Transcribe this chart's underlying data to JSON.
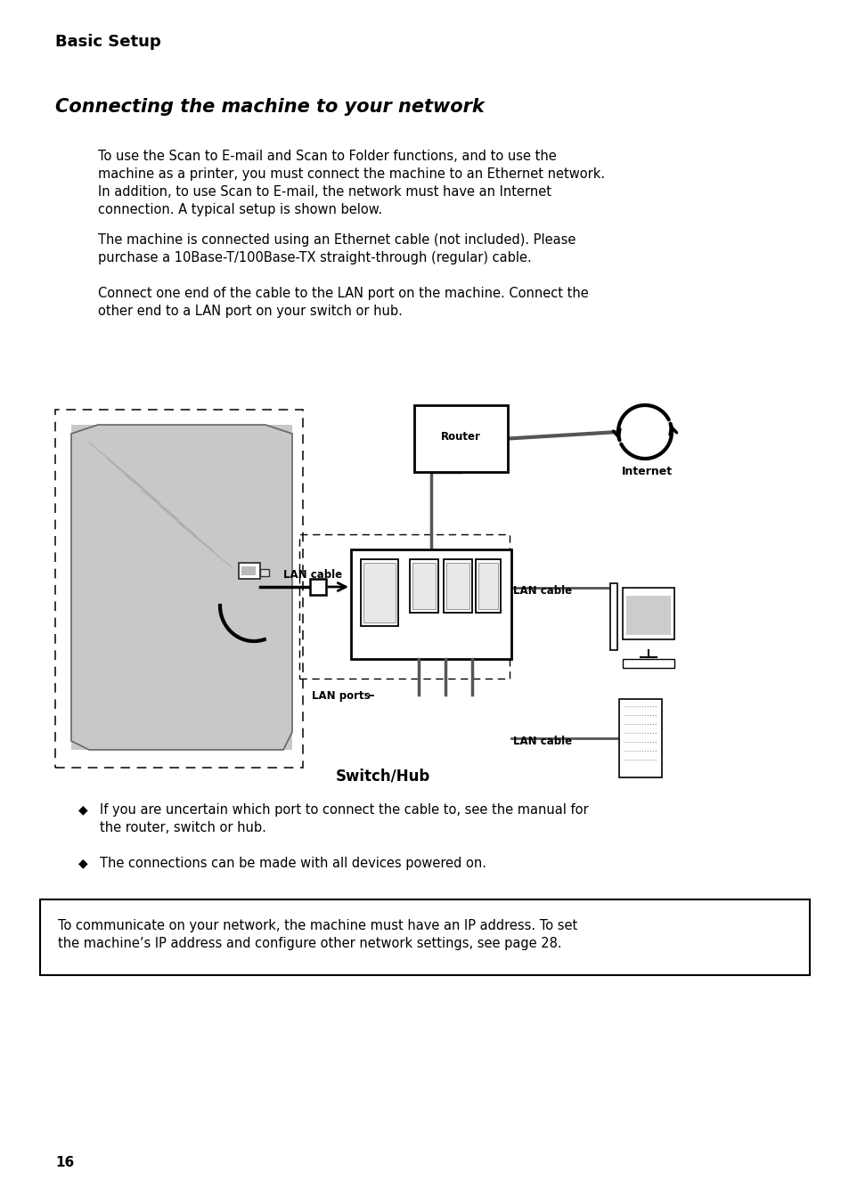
{
  "title": "Basic Setup",
  "section_title": "Connecting the machine to your network",
  "para1_lines": [
    "To use the Scan to E-mail and Scan to Folder functions, and to use the",
    "machine as a printer, you must connect the machine to an Ethernet network.",
    "In addition, to use Scan to E-mail, the network must have an Internet",
    "connection. A typical setup is shown below."
  ],
  "para2_lines": [
    "The machine is connected using an Ethernet cable (not included). Please",
    "purchase a 10Base-T/100Base-TX straight-through (regular) cable."
  ],
  "para3_lines": [
    "Connect one end of the cable to the LAN port on the machine. Connect the",
    "other end to a LAN port on your switch or hub."
  ],
  "bullet1_lines": [
    "If you are uncertain which port to connect the cable to, see the manual for",
    "the router, switch or hub."
  ],
  "bullet2_lines": [
    "The connections can be made with all devices powered on."
  ],
  "note_lines": [
    "To communicate on your network, the machine must have an IP address. To set",
    "the machine’s IP address and configure other network settings, see page 28."
  ],
  "page_num": "16",
  "label_router": "Router",
  "label_internet": "Internet",
  "label_lan_cable1": "LAN cable",
  "label_lan_cable2": "LAN cable",
  "label_lan_cable3": "LAN cable",
  "label_lan_ports": "LAN ports",
  "label_switch_hub": "Switch/Hub",
  "bg_color": "#ffffff",
  "text_color": "#000000",
  "gray_machine": "#c8c8c8",
  "line_color": "#555555",
  "hub_line_color": "#666666"
}
